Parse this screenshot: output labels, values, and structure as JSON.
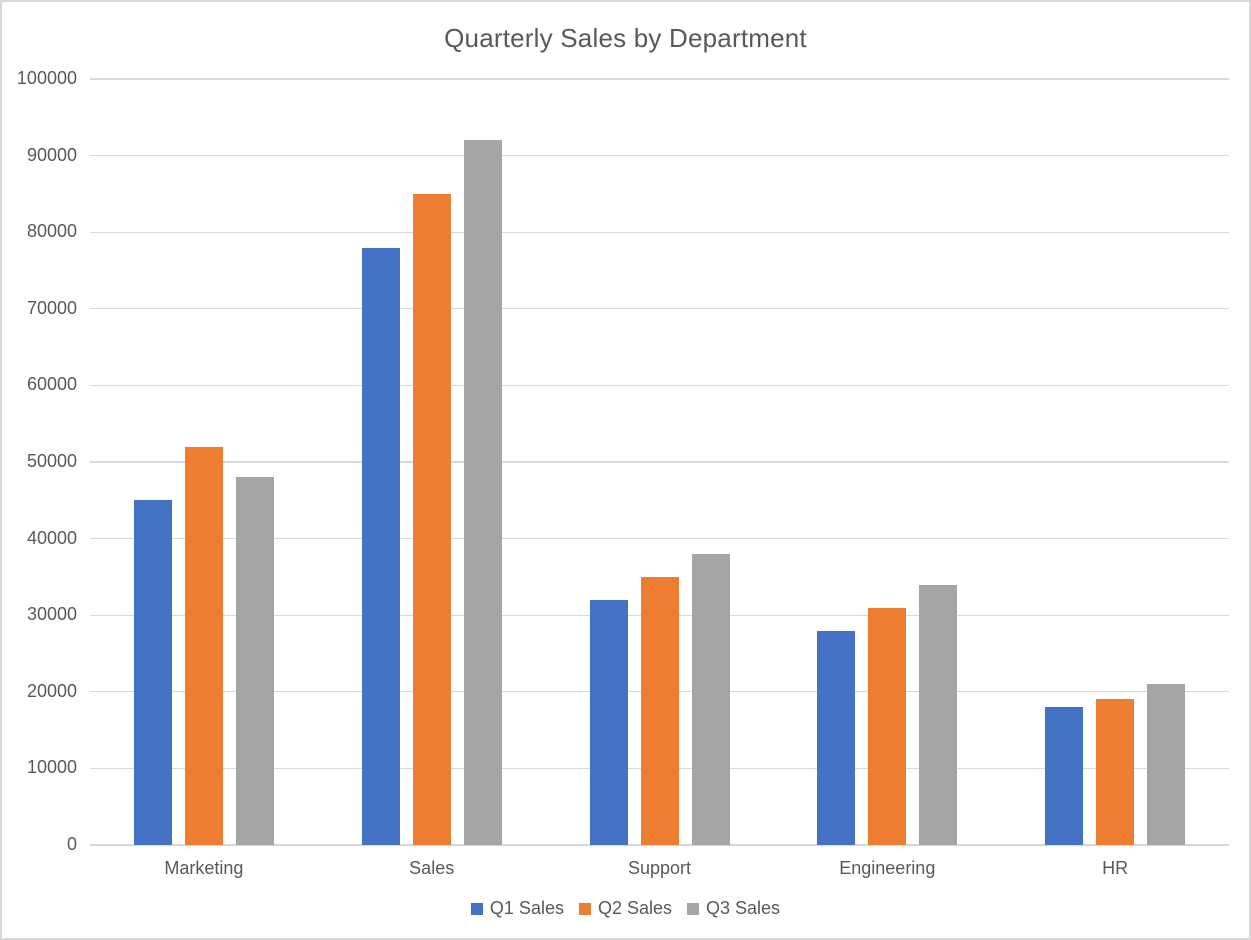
{
  "chart_data": {
    "type": "bar",
    "title": "Quarterly Sales by Department",
    "categories": [
      "Marketing",
      "Sales",
      "Support",
      "Engineering",
      "HR"
    ],
    "series": [
      {
        "name": "Q1 Sales",
        "color": "#4472C4",
        "values": [
          45000,
          78000,
          32000,
          28000,
          18000
        ]
      },
      {
        "name": "Q2 Sales",
        "color": "#ED7D31",
        "values": [
          52000,
          85000,
          35000,
          31000,
          19000
        ]
      },
      {
        "name": "Q3 Sales",
        "color": "#A5A5A5",
        "values": [
          48000,
          92000,
          38000,
          34000,
          21000
        ]
      }
    ],
    "xlabel": "",
    "ylabel": "",
    "ylim": [
      0,
      100000
    ],
    "ytick_step": 10000,
    "ytick_labels": [
      "0",
      "10000",
      "20000",
      "30000",
      "40000",
      "50000",
      "60000",
      "70000",
      "80000",
      "90000",
      "100000"
    ],
    "grid": true,
    "legend_position": "bottom"
  },
  "colors": {
    "text": "#595959",
    "gridline": "#D9D9D9",
    "axis_line": "#D6D6D6",
    "chart_border": "#D9D9D9",
    "background": "#FFFFFF"
  }
}
